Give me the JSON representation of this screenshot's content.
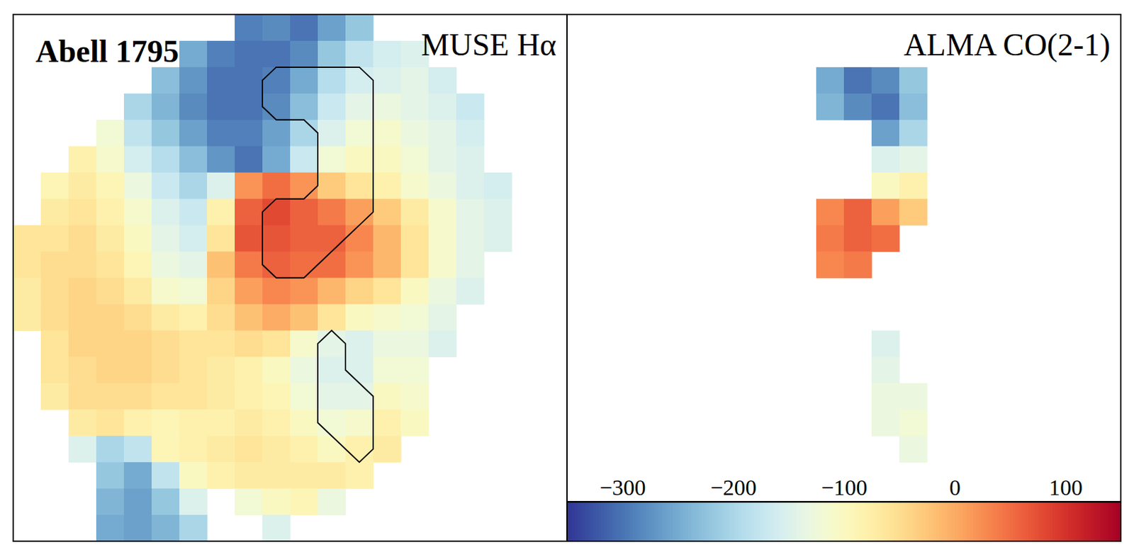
{
  "chart_data": [
    {
      "type": "heatmap",
      "title": "MUSE Hα",
      "annotations": [
        "Abell 1795"
      ],
      "cells": [
        [
          null,
          null,
          null,
          null,
          null,
          null,
          null,
          null,
          -290,
          -280,
          -300,
          -260,
          -220,
          null,
          null,
          null,
          null,
          null,
          null,
          null
        ],
        [
          null,
          null,
          null,
          null,
          null,
          null,
          -250,
          -290,
          -300,
          -300,
          -280,
          -220,
          -180,
          -160,
          -150,
          null,
          null,
          null,
          null,
          null
        ],
        [
          null,
          null,
          null,
          null,
          null,
          -230,
          -270,
          -300,
          -300,
          -290,
          -250,
          -190,
          -160,
          -150,
          -140,
          -160,
          null,
          null,
          null,
          null
        ],
        [
          null,
          null,
          null,
          null,
          -200,
          -240,
          -280,
          -300,
          -300,
          -280,
          -230,
          -170,
          -140,
          -130,
          -140,
          -150,
          -170,
          null,
          null,
          null
        ],
        [
          null,
          null,
          null,
          -120,
          -180,
          -220,
          -260,
          -290,
          -290,
          -260,
          -200,
          -150,
          -120,
          -110,
          -130,
          -140,
          -160,
          null,
          null,
          null
        ],
        [
          null,
          null,
          -80,
          -110,
          -160,
          -190,
          -230,
          -270,
          -300,
          -250,
          -170,
          -120,
          -100,
          -100,
          -120,
          -140,
          -150,
          null,
          null,
          null
        ],
        [
          null,
          -90,
          -70,
          -90,
          -130,
          -170,
          -200,
          -150,
          20,
          50,
          20,
          -30,
          -60,
          -80,
          -110,
          -130,
          -150,
          -160,
          null,
          null
        ],
        [
          null,
          -70,
          -60,
          -80,
          -110,
          -150,
          -170,
          -80,
          60,
          80,
          60,
          40,
          10,
          -30,
          -70,
          -110,
          -140,
          -150,
          null,
          null
        ],
        [
          -60,
          -60,
          -50,
          -70,
          -100,
          -140,
          -160,
          -60,
          70,
          70,
          60,
          60,
          30,
          -10,
          -60,
          -110,
          -140,
          -150,
          null,
          null
        ],
        [
          -60,
          -50,
          -50,
          -60,
          -90,
          -130,
          -140,
          -20,
          40,
          60,
          50,
          50,
          20,
          -10,
          -60,
          -110,
          -140,
          null,
          null,
          null
        ],
        [
          -70,
          -50,
          -40,
          -50,
          -70,
          -110,
          -120,
          -40,
          10,
          30,
          20,
          -10,
          -40,
          -60,
          -100,
          -130,
          -150,
          null,
          null,
          null
        ],
        [
          -70,
          -50,
          -40,
          -40,
          -50,
          -70,
          -80,
          -50,
          -20,
          0,
          -20,
          -60,
          -100,
          -110,
          -120,
          -140,
          null,
          null,
          null,
          null
        ],
        [
          null,
          -60,
          -40,
          -40,
          -40,
          -50,
          -60,
          -60,
          -50,
          -60,
          -110,
          -140,
          -150,
          -130,
          -130,
          -150,
          null,
          null,
          null,
          null
        ],
        [
          null,
          -60,
          -50,
          -40,
          -40,
          -50,
          -60,
          -70,
          -80,
          -100,
          -130,
          -150,
          -150,
          -120,
          -120,
          null,
          null,
          null,
          null,
          null
        ],
        [
          null,
          -70,
          -50,
          -50,
          -50,
          -60,
          -60,
          -70,
          -80,
          -90,
          -120,
          -140,
          -140,
          -100,
          -110,
          null,
          null,
          null,
          null,
          null
        ],
        [
          null,
          null,
          -70,
          -60,
          -80,
          -90,
          -80,
          -80,
          -70,
          -80,
          -100,
          -120,
          -110,
          -80,
          -100,
          null,
          null,
          null,
          null,
          null
        ],
        [
          null,
          null,
          -150,
          -200,
          -180,
          -90,
          -80,
          -70,
          -60,
          -70,
          -80,
          -100,
          -80,
          -70,
          null,
          null,
          null,
          null,
          null,
          null
        ],
        [
          null,
          null,
          null,
          -220,
          -250,
          -180,
          -100,
          -80,
          -70,
          -70,
          -70,
          -70,
          -80,
          null,
          null,
          null,
          null,
          null,
          null,
          null
        ],
        [
          null,
          null,
          null,
          -240,
          -260,
          -220,
          -150,
          null,
          -120,
          -100,
          -90,
          -130,
          null,
          null,
          null,
          null,
          null,
          null,
          null,
          null
        ],
        [
          null,
          null,
          null,
          -250,
          -260,
          -240,
          -200,
          null,
          null,
          -150,
          null,
          null,
          null,
          null,
          null,
          null,
          null,
          null,
          null,
          null
        ]
      ]
    },
    {
      "type": "heatmap",
      "title": "ALMA CO(2-1)",
      "cells": [
        [
          null,
          null,
          null,
          null,
          null,
          null,
          null,
          null,
          null,
          null,
          null,
          null,
          null,
          null,
          null,
          null,
          null,
          null,
          null,
          null
        ],
        [
          null,
          null,
          null,
          null,
          null,
          null,
          null,
          null,
          null,
          null,
          null,
          null,
          null,
          null,
          null,
          null,
          null,
          null,
          null,
          null
        ],
        [
          null,
          null,
          null,
          null,
          null,
          null,
          null,
          null,
          null,
          -250,
          -300,
          -280,
          -220,
          null,
          null,
          null,
          null,
          null,
          null,
          null
        ],
        [
          null,
          null,
          null,
          null,
          null,
          null,
          null,
          null,
          null,
          -240,
          -280,
          -300,
          -230,
          null,
          null,
          null,
          null,
          null,
          null,
          null
        ],
        [
          null,
          null,
          null,
          null,
          null,
          null,
          null,
          null,
          null,
          null,
          null,
          -260,
          -200,
          null,
          null,
          null,
          null,
          null,
          null,
          null
        ],
        [
          null,
          null,
          null,
          null,
          null,
          null,
          null,
          null,
          null,
          null,
          null,
          -150,
          -140,
          null,
          null,
          null,
          null,
          null,
          null,
          null
        ],
        [
          null,
          null,
          null,
          null,
          null,
          null,
          null,
          null,
          null,
          null,
          null,
          -100,
          -80,
          null,
          null,
          null,
          null,
          null,
          null,
          null
        ],
        [
          null,
          null,
          null,
          null,
          null,
          null,
          null,
          null,
          null,
          30,
          60,
          10,
          -30,
          null,
          null,
          null,
          null,
          null,
          null,
          null
        ],
        [
          null,
          null,
          null,
          null,
          null,
          null,
          null,
          null,
          null,
          40,
          60,
          50,
          null,
          null,
          null,
          null,
          null,
          null,
          null,
          null
        ],
        [
          null,
          null,
          null,
          null,
          null,
          null,
          null,
          null,
          null,
          30,
          40,
          null,
          null,
          null,
          null,
          null,
          null,
          null,
          null,
          null
        ],
        [
          null,
          null,
          null,
          null,
          null,
          null,
          null,
          null,
          null,
          null,
          null,
          null,
          null,
          null,
          null,
          null,
          null,
          null,
          null,
          null
        ],
        [
          null,
          null,
          null,
          null,
          null,
          null,
          null,
          null,
          null,
          null,
          null,
          null,
          null,
          null,
          null,
          null,
          null,
          null,
          null,
          null
        ],
        [
          null,
          null,
          null,
          null,
          null,
          null,
          null,
          null,
          null,
          null,
          null,
          -150,
          null,
          null,
          null,
          null,
          null,
          null,
          null,
          null
        ],
        [
          null,
          null,
          null,
          null,
          null,
          null,
          null,
          null,
          null,
          null,
          null,
          -140,
          null,
          null,
          null,
          null,
          null,
          null,
          null,
          null
        ],
        [
          null,
          null,
          null,
          null,
          null,
          null,
          null,
          null,
          null,
          null,
          null,
          -130,
          -130,
          null,
          null,
          null,
          null,
          null,
          null,
          null
        ],
        [
          null,
          null,
          null,
          null,
          null,
          null,
          null,
          null,
          null,
          null,
          null,
          -130,
          -120,
          null,
          null,
          null,
          null,
          null,
          null,
          null
        ],
        [
          null,
          null,
          null,
          null,
          null,
          null,
          null,
          null,
          null,
          null,
          null,
          null,
          -130,
          null,
          null,
          null,
          null,
          null,
          null,
          null
        ],
        [
          null,
          null,
          null,
          null,
          null,
          null,
          null,
          null,
          null,
          null,
          null,
          null,
          null,
          null,
          null,
          null,
          null,
          null,
          null,
          null
        ],
        [
          null,
          null,
          null,
          null,
          null,
          null,
          null,
          null,
          null,
          null,
          null,
          null,
          null,
          null,
          null,
          null,
          null,
          null,
          null,
          null
        ],
        [
          null,
          null,
          null,
          null,
          null,
          null,
          null,
          null,
          null,
          null,
          null,
          null,
          null,
          null,
          null,
          null,
          null,
          null,
          null,
          null
        ]
      ],
      "colorbar": {
        "range": [
          -350,
          150
        ],
        "ticks": [
          {
            "value": -300,
            "label": "−300"
          },
          {
            "value": -200,
            "label": "−200"
          },
          {
            "value": -100,
            "label": "−100"
          },
          0,
          100
        ]
      }
    }
  ]
}
